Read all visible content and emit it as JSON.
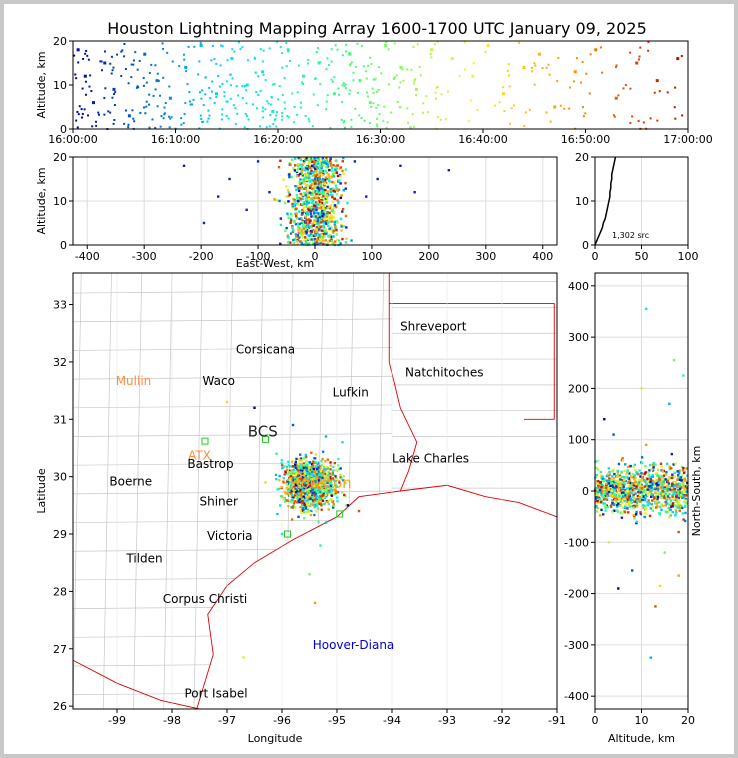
{
  "title": "Houston Lightning Mapping Array 1600-1700 UTC January 09, 2025",
  "source_count": "1,302 src",
  "chart_data": [
    {
      "panel": "time-height",
      "type": "scatter",
      "ylabel": "Altitude, km",
      "x_ticks": [
        "16:00:00",
        "16:10:00",
        "16:20:00",
        "16:30:00",
        "16:40:00",
        "16:50:00",
        "17:00:00"
      ],
      "x_range_minutes": [
        0,
        60
      ],
      "y_ticks": [
        "0",
        "10",
        "20"
      ],
      "ylim": [
        0,
        20
      ],
      "color_scale": "time: blue (16:00) → cyan → green → yellow → orange → red (17:00)",
      "points": [
        [
          0.5,
          18
        ],
        [
          1.2,
          12
        ],
        [
          2.0,
          6
        ],
        [
          3.1,
          15
        ],
        [
          4.0,
          9
        ],
        [
          5.5,
          3
        ],
        [
          7.0,
          17
        ],
        [
          8.2,
          11
        ],
        [
          9.5,
          7
        ],
        [
          11.0,
          14
        ],
        [
          12.5,
          19
        ],
        [
          14.0,
          8
        ],
        [
          15.5,
          16
        ],
        [
          17.0,
          10
        ],
        [
          18.5,
          13
        ],
        [
          19.5,
          4
        ],
        [
          21.0,
          18
        ],
        [
          22.5,
          12
        ],
        [
          24.0,
          15
        ],
        [
          25.5,
          8
        ],
        [
          27.0,
          17
        ],
        [
          28.0,
          11
        ],
        [
          29.0,
          6
        ],
        [
          30.5,
          19
        ],
        [
          32.0,
          14
        ],
        [
          33.5,
          9
        ],
        [
          35.0,
          18
        ],
        [
          37.0,
          16
        ],
        [
          39.0,
          12
        ],
        [
          40.5,
          19
        ],
        [
          42.0,
          8
        ],
        [
          44.0,
          14
        ],
        [
          45.5,
          17
        ],
        [
          47.0,
          5
        ],
        [
          49.0,
          13
        ],
        [
          51.0,
          18
        ],
        [
          53.0,
          7
        ],
        [
          55.0,
          15
        ],
        [
          57.0,
          11
        ],
        [
          59.0,
          16
        ]
      ]
    },
    {
      "panel": "east-west-altitude",
      "type": "scatter",
      "xlabel": "East-West, km",
      "ylabel": "Altitude, km",
      "x_ticks": [
        "-400",
        "-300",
        "-200",
        "-100",
        "0",
        "100",
        "200",
        "300",
        "400"
      ],
      "xlim": [
        -425,
        425
      ],
      "y_ticks": [
        "0",
        "10",
        "20"
      ],
      "ylim": [
        0,
        20
      ],
      "points": [
        [
          -230,
          18
        ],
        [
          -195,
          5
        ],
        [
          -170,
          11
        ],
        [
          -150,
          15
        ],
        [
          -120,
          8
        ],
        [
          -100,
          19
        ],
        [
          -80,
          12
        ],
        [
          -60,
          6
        ],
        [
          -45,
          16
        ],
        [
          -30,
          10
        ],
        [
          -15,
          3
        ],
        [
          -5,
          18
        ],
        [
          5,
          13
        ],
        [
          15,
          7
        ],
        [
          25,
          17
        ],
        [
          35,
          9
        ],
        [
          45,
          14
        ],
        [
          55,
          4
        ],
        [
          70,
          19
        ],
        [
          90,
          11
        ],
        [
          110,
          15
        ],
        [
          150,
          18
        ],
        [
          175,
          12
        ],
        [
          235,
          17
        ]
      ]
    },
    {
      "panel": "altitude-histogram",
      "type": "line",
      "x_ticks": [
        "0",
        "50",
        "100"
      ],
      "xlim": [
        0,
        100
      ],
      "y_ticks": [
        "0",
        "10",
        "20"
      ],
      "ylim": [
        0,
        20
      ],
      "profile": [
        [
          0,
          0
        ],
        [
          2,
          1
        ],
        [
          4,
          2
        ],
        [
          6,
          3
        ],
        [
          8,
          4
        ],
        [
          9,
          5
        ],
        [
          11,
          6
        ],
        [
          12,
          7
        ],
        [
          13,
          8
        ],
        [
          14,
          9
        ],
        [
          15,
          10
        ],
        [
          16,
          11
        ],
        [
          16,
          12
        ],
        [
          17,
          13
        ],
        [
          17,
          14
        ],
        [
          18,
          15
        ],
        [
          18,
          16
        ],
        [
          19,
          17
        ],
        [
          20,
          18
        ],
        [
          21,
          19
        ],
        [
          22,
          20
        ]
      ]
    },
    {
      "panel": "plan-view-map",
      "type": "scatter",
      "xlabel": "Longitude",
      "ylabel": "Latitude",
      "x_ticks": [
        "-99",
        "-98",
        "-97",
        "-96",
        "-95",
        "-94",
        "-93",
        "-92",
        "-91"
      ],
      "xlim": [
        -99.8,
        -91.0
      ],
      "y_ticks": [
        "26",
        "27",
        "28",
        "29",
        "30",
        "31",
        "32",
        "33"
      ],
      "ylim": [
        25.95,
        33.55
      ],
      "labels": [
        {
          "text": "Shreveport",
          "lon": -93.25,
          "lat": 32.55,
          "color": "#000000"
        },
        {
          "text": "Corsicana",
          "lon": -96.3,
          "lat": 32.15,
          "color": "#000000"
        },
        {
          "text": "Natchitoches",
          "lon": -93.05,
          "lat": 31.75,
          "color": "#000000"
        },
        {
          "text": "Mullin",
          "lon": -98.7,
          "lat": 31.6,
          "color": "#ff8c40"
        },
        {
          "text": "Waco",
          "lon": -97.15,
          "lat": 31.6,
          "color": "#000000"
        },
        {
          "text": "Lufkin",
          "lon": -94.75,
          "lat": 31.4,
          "color": "#000000"
        },
        {
          "text": "BCS",
          "lon": -96.35,
          "lat": 30.7,
          "color": "#222222"
        },
        {
          "text": "ATX",
          "lon": -97.5,
          "lat": 30.3,
          "color": "#ff8c40"
        },
        {
          "text": "Bastrop",
          "lon": -97.3,
          "lat": 30.15,
          "color": "#000000"
        },
        {
          "text": "Lake Charles",
          "lon": -93.3,
          "lat": 30.25,
          "color": "#000000"
        },
        {
          "text": "Boerne",
          "lon": -98.75,
          "lat": 29.85,
          "color": "#000000"
        },
        {
          "text": "Houston",
          "lon": -95.3,
          "lat": 29.8,
          "color": "#ffa020"
        },
        {
          "text": "Shiner",
          "lon": -97.15,
          "lat": 29.5,
          "color": "#000000"
        },
        {
          "text": "Victoria",
          "lon": -96.95,
          "lat": 28.9,
          "color": "#000000"
        },
        {
          "text": "Tilden",
          "lon": -98.5,
          "lat": 28.5,
          "color": "#000000"
        },
        {
          "text": "Corpus Christi",
          "lon": -97.4,
          "lat": 27.8,
          "color": "#000000"
        },
        {
          "text": "Hoover-Diana",
          "lon": -94.7,
          "lat": 27.0,
          "color": "#0000cc"
        },
        {
          "text": "Port Isabel",
          "lon": -97.2,
          "lat": 26.15,
          "color": "#000000"
        }
      ],
      "cluster_center": {
        "lon": -95.5,
        "lat": 29.85
      },
      "points": [
        [
          -96.5,
          31.2
        ],
        [
          -95.8,
          30.9
        ],
        [
          -95.2,
          30.7
        ],
        [
          -94.9,
          30.6
        ],
        [
          -96.1,
          30.4
        ],
        [
          -95.6,
          30.2
        ],
        [
          -95.0,
          30.1
        ],
        [
          -96.3,
          29.9
        ],
        [
          -95.9,
          29.7
        ],
        [
          -95.4,
          29.6
        ],
        [
          -94.8,
          29.5
        ],
        [
          -95.7,
          29.3
        ],
        [
          -95.2,
          29.2
        ],
        [
          -96.0,
          29.0
        ],
        [
          -95.3,
          28.8
        ],
        [
          -95.5,
          28.3
        ],
        [
          -96.7,
          26.85
        ],
        [
          -97.0,
          31.3
        ],
        [
          -95.4,
          27.8
        ],
        [
          -94.6,
          29.4
        ]
      ]
    },
    {
      "panel": "altitude-north-south",
      "type": "scatter",
      "xlabel": "Altitude, km",
      "ylabel": "North-South, km",
      "x_ticks": [
        "0",
        "10",
        "20"
      ],
      "xlim": [
        0,
        20
      ],
      "y_ticks": [
        "-400",
        "-300",
        "-200",
        "-100",
        "0",
        "100",
        "200",
        "300",
        "400"
      ],
      "ylim": [
        -425,
        425
      ],
      "points": [
        [
          5,
          -190
        ],
        [
          8,
          -155
        ],
        [
          12,
          -325
        ],
        [
          11,
          355
        ],
        [
          19,
          225
        ],
        [
          17,
          255
        ],
        [
          10,
          200
        ],
        [
          14,
          -185
        ],
        [
          18,
          -165
        ],
        [
          13,
          -225
        ],
        [
          2,
          140
        ],
        [
          4,
          110
        ],
        [
          16,
          170
        ],
        [
          9,
          -60
        ],
        [
          7,
          40
        ],
        [
          15,
          -120
        ],
        [
          3,
          -100
        ],
        [
          6,
          60
        ],
        [
          11,
          90
        ],
        [
          18,
          -80
        ]
      ]
    }
  ]
}
